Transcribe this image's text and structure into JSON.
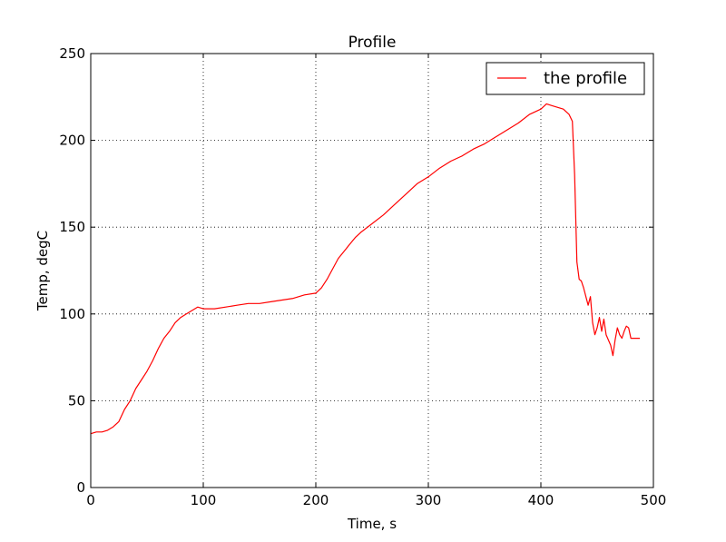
{
  "chart_data": {
    "type": "line",
    "title": "Profile",
    "xlabel": "Time, s",
    "ylabel": "Temp, degC",
    "xlim": [
      0,
      500
    ],
    "ylim": [
      0,
      250
    ],
    "xticks": [
      0,
      100,
      200,
      300,
      400,
      500
    ],
    "yticks": [
      0,
      50,
      100,
      150,
      200,
      250
    ],
    "grid": true,
    "legend_position": "top-right",
    "colors": {
      "series": "#ff0000",
      "axes": "#000000",
      "grid": "#000000"
    },
    "series": [
      {
        "name": "the profile",
        "x": [
          0,
          5,
          10,
          15,
          20,
          25,
          30,
          35,
          40,
          45,
          50,
          55,
          60,
          65,
          70,
          75,
          80,
          85,
          90,
          95,
          100,
          110,
          120,
          130,
          140,
          150,
          160,
          170,
          180,
          190,
          200,
          205,
          210,
          215,
          220,
          225,
          230,
          235,
          240,
          250,
          260,
          270,
          280,
          290,
          300,
          310,
          320,
          330,
          340,
          350,
          360,
          370,
          380,
          390,
          400,
          405,
          410,
          415,
          420,
          425,
          428,
          430,
          432,
          434,
          436,
          438,
          440,
          442,
          444,
          446,
          448,
          450,
          452,
          454,
          456,
          458,
          460,
          462,
          464,
          466,
          468,
          470,
          472,
          474,
          476,
          478,
          480,
          484,
          488
        ],
        "y": [
          31,
          32,
          32,
          33,
          35,
          38,
          45,
          50,
          57,
          62,
          67,
          73,
          80,
          86,
          90,
          95,
          98,
          100,
          102,
          104,
          103,
          103,
          104,
          105,
          106,
          106,
          107,
          108,
          109,
          111,
          112,
          115,
          120,
          126,
          132,
          136,
          140,
          144,
          147,
          152,
          157,
          163,
          169,
          175,
          179,
          184,
          188,
          191,
          195,
          198,
          202,
          206,
          210,
          215,
          218,
          221,
          220,
          219,
          218,
          215,
          211,
          180,
          130,
          120,
          119,
          115,
          110,
          105,
          110,
          95,
          88,
          92,
          98,
          90,
          97,
          88,
          85,
          82,
          76,
          85,
          92,
          88,
          86,
          90,
          93,
          92,
          86,
          86,
          86
        ]
      }
    ]
  }
}
